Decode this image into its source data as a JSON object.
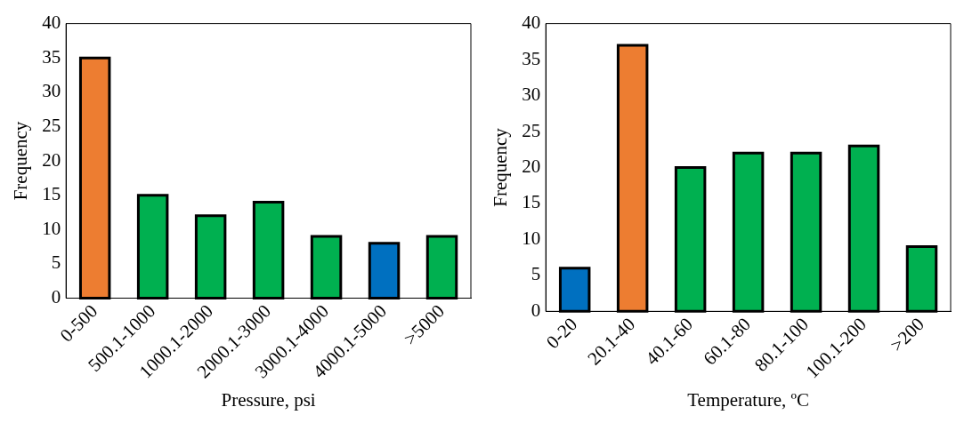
{
  "chart_data": [
    {
      "type": "bar",
      "categories": [
        "0-500",
        "500.1-1000",
        "1000.1-2000",
        "2000.1-3000",
        "3000.1-4000",
        "4000.1-5000",
        ">5000"
      ],
      "values": [
        35,
        15,
        12,
        14,
        9,
        8,
        9
      ],
      "colors": [
        "#ed7d31",
        "#00b050",
        "#00b050",
        "#00b050",
        "#00b050",
        "#0070c0",
        "#00b050"
      ],
      "xlabel": "Pressure, psi",
      "ylabel": "Frequency",
      "ylim": [
        0,
        40
      ],
      "yticks": [
        0,
        5,
        10,
        15,
        20,
        25,
        30,
        35,
        40
      ],
      "grid": false
    },
    {
      "type": "bar",
      "categories": [
        "0-20",
        "20.1-40",
        "40.1-60",
        "60.1-80",
        "80.1-100",
        "100.1-200",
        ">200"
      ],
      "values": [
        6,
        37,
        20,
        22,
        22,
        23,
        9
      ],
      "colors": [
        "#0070c0",
        "#ed7d31",
        "#00b050",
        "#00b050",
        "#00b050",
        "#00b050",
        "#00b050"
      ],
      "xlabel": "Temperature, ºC",
      "ylabel": "Frequency",
      "ylim": [
        0,
        40
      ],
      "yticks": [
        0,
        5,
        10,
        15,
        20,
        25,
        30,
        35,
        40
      ],
      "grid": false
    }
  ]
}
